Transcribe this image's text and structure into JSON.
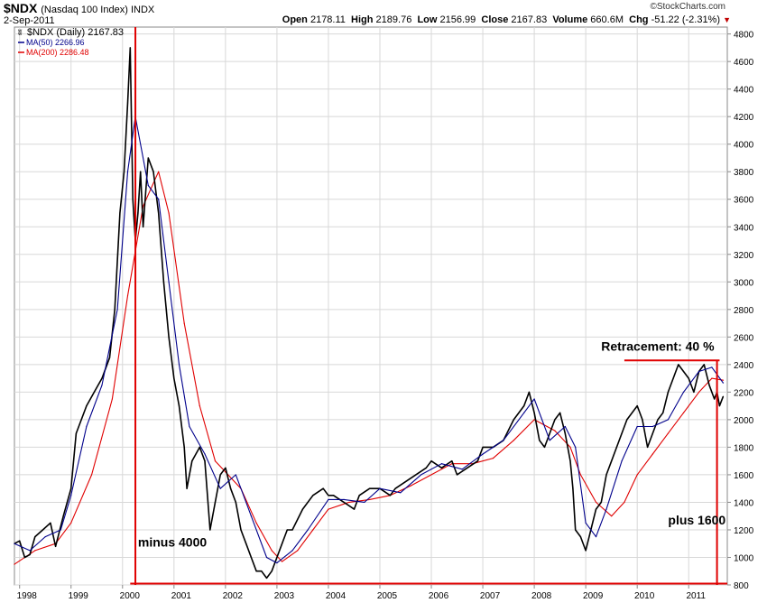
{
  "header": {
    "symbol": "$NDX",
    "symbol_name": "(Nasdaq 100 Index)",
    "exchange": "INDX",
    "date": "2-Sep-2011",
    "brand": "©StockCharts.com",
    "quote": {
      "open_label": "Open",
      "open": "2178.11",
      "high_label": "High",
      "high": "2189.76",
      "low_label": "Low",
      "low": "2156.99",
      "close_label": "Close",
      "close": "2167.83",
      "volume_label": "Volume",
      "volume": "660.6M",
      "chg_label": "Chg",
      "chg": "-51.22 (-2.31%)",
      "chg_arrow": "▼"
    }
  },
  "colors": {
    "price": "#000000",
    "ma50": "#00008b",
    "ma200": "#e00000",
    "annotation": "#e00000",
    "grid": "#d8d8d8",
    "frame": "#888888"
  },
  "chart_data": {
    "type": "line",
    "title": "$NDX (Nasdaq 100 Index) INDX",
    "ylim": [
      800,
      4850
    ],
    "yticks": [
      800,
      1000,
      1200,
      1400,
      1600,
      1800,
      2000,
      2200,
      2400,
      2600,
      2800,
      3000,
      3200,
      3400,
      3600,
      3800,
      4000,
      4200,
      4400,
      4600,
      4800
    ],
    "xlim": [
      1997.9,
      2011.75
    ],
    "xticks": [
      {
        "x": 1998,
        "label": "1998"
      },
      {
        "x": 1999,
        "label": "1999"
      },
      {
        "x": 2000,
        "label": "2000"
      },
      {
        "x": 2001,
        "label": "2001"
      },
      {
        "x": 2002,
        "label": "2002"
      },
      {
        "x": 2003,
        "label": "2003"
      },
      {
        "x": 2004,
        "label": "2004"
      },
      {
        "x": 2005,
        "label": "2005"
      },
      {
        "x": 2006,
        "label": "2006"
      },
      {
        "x": 2007,
        "label": "2007"
      },
      {
        "x": 2008,
        "label": "2008"
      },
      {
        "x": 2009,
        "label": "2009"
      },
      {
        "x": 2010,
        "label": "2010"
      },
      {
        "x": 2011,
        "label": "2011"
      }
    ],
    "legend": {
      "position": "top-left",
      "items": [
        {
          "name": "$NDX (Daily) 2167.83",
          "color": "#000000"
        },
        {
          "name": "MA(50) 2266.96",
          "color": "#00008b"
        },
        {
          "name": "MA(200) 2286.48",
          "color": "#e00000"
        }
      ]
    },
    "series": [
      {
        "name": "$NDX (Daily)",
        "x": [
          1997.9,
          1998.0,
          1998.1,
          1998.2,
          1998.3,
          1998.45,
          1998.6,
          1998.7,
          1998.85,
          1999.0,
          1999.1,
          1999.3,
          1999.45,
          1999.6,
          1999.75,
          1999.85,
          1999.95,
          2000.03,
          2000.1,
          2000.15,
          2000.2,
          2000.25,
          2000.3,
          2000.35,
          2000.4,
          2000.5,
          2000.6,
          2000.7,
          2000.8,
          2000.9,
          2001.0,
          2001.1,
          2001.2,
          2001.25,
          2001.35,
          2001.5,
          2001.6,
          2001.7,
          2001.8,
          2001.9,
          2002.0,
          2002.1,
          2002.2,
          2002.3,
          2002.4,
          2002.5,
          2002.6,
          2002.7,
          2002.8,
          2002.9,
          2003.0,
          2003.1,
          2003.2,
          2003.3,
          2003.5,
          2003.7,
          2003.9,
          2004.0,
          2004.1,
          2004.3,
          2004.5,
          2004.6,
          2004.8,
          2005.0,
          2005.2,
          2005.3,
          2005.5,
          2005.7,
          2005.9,
          2006.0,
          2006.2,
          2006.4,
          2006.5,
          2006.7,
          2006.9,
          2007.0,
          2007.2,
          2007.4,
          2007.6,
          2007.8,
          2007.9,
          2008.0,
          2008.1,
          2008.2,
          2008.3,
          2008.4,
          2008.5,
          2008.6,
          2008.7,
          2008.75,
          2008.8,
          2008.9,
          2009.0,
          2009.1,
          2009.2,
          2009.3,
          2009.4,
          2009.5,
          2009.6,
          2009.7,
          2009.8,
          2010.0,
          2010.1,
          2010.2,
          2010.3,
          2010.4,
          2010.5,
          2010.6,
          2010.7,
          2010.8,
          2011.0,
          2011.1,
          2011.2,
          2011.3,
          2011.4,
          2011.5,
          2011.55,
          2011.6,
          2011.67
        ],
        "values": [
          1100,
          1120,
          1000,
          1020,
          1150,
          1200,
          1250,
          1080,
          1300,
          1500,
          1900,
          2100,
          2200,
          2300,
          2450,
          2800,
          3500,
          3800,
          4300,
          4700,
          3600,
          3300,
          3500,
          3800,
          3400,
          3900,
          3800,
          3500,
          3000,
          2600,
          2300,
          2100,
          1800,
          1500,
          1700,
          1800,
          1700,
          1200,
          1400,
          1600,
          1650,
          1500,
          1400,
          1200,
          1100,
          1000,
          900,
          900,
          850,
          900,
          1000,
          1100,
          1200,
          1200,
          1350,
          1450,
          1500,
          1450,
          1450,
          1400,
          1350,
          1450,
          1500,
          1500,
          1450,
          1500,
          1550,
          1600,
          1650,
          1700,
          1650,
          1700,
          1600,
          1650,
          1700,
          1800,
          1800,
          1850,
          2000,
          2100,
          2200,
          2050,
          1850,
          1800,
          1900,
          2000,
          2050,
          1900,
          1700,
          1500,
          1200,
          1150,
          1050,
          1200,
          1350,
          1400,
          1600,
          1700,
          1800,
          1900,
          2000,
          2100,
          2000,
          1800,
          1900,
          2000,
          2050,
          2200,
          2300,
          2400,
          2300,
          2200,
          2350,
          2400,
          2250,
          2150,
          2200,
          2100,
          2167.83
        ]
      },
      {
        "name": "MA(50)",
        "x": [
          1997.9,
          1998.2,
          1998.5,
          1998.8,
          1999.0,
          1999.3,
          1999.6,
          1999.9,
          2000.1,
          2000.25,
          2000.5,
          2000.7,
          2000.9,
          2001.1,
          2001.3,
          2001.6,
          2001.9,
          2002.2,
          2002.5,
          2002.8,
          2003.0,
          2003.3,
          2003.6,
          2004.0,
          2004.3,
          2004.7,
          2005.0,
          2005.4,
          2005.8,
          2006.2,
          2006.6,
          2007.0,
          2007.4,
          2007.8,
          2008.0,
          2008.3,
          2008.6,
          2008.8,
          2009.0,
          2009.2,
          2009.4,
          2009.7,
          2010.0,
          2010.3,
          2010.6,
          2010.9,
          2011.2,
          2011.45,
          2011.67
        ],
        "values": [
          1100,
          1050,
          1150,
          1200,
          1450,
          1950,
          2250,
          2800,
          3800,
          4200,
          3700,
          3600,
          3000,
          2400,
          1950,
          1750,
          1500,
          1600,
          1300,
          1000,
          960,
          1050,
          1200,
          1420,
          1420,
          1400,
          1500,
          1470,
          1600,
          1680,
          1640,
          1750,
          1850,
          2050,
          2150,
          1850,
          1950,
          1800,
          1250,
          1150,
          1350,
          1700,
          1950,
          1950,
          2000,
          2200,
          2350,
          2380,
          2266.96
        ]
      },
      {
        "name": "MA(200)",
        "x": [
          1997.9,
          1998.3,
          1998.7,
          1999.0,
          1999.4,
          1999.8,
          2000.1,
          2000.4,
          2000.7,
          2000.9,
          2001.2,
          2001.5,
          2001.8,
          2002.0,
          2002.3,
          2002.6,
          2002.9,
          2003.1,
          2003.4,
          2003.7,
          2004.0,
          2004.4,
          2004.8,
          2005.2,
          2005.6,
          2006.0,
          2006.4,
          2006.8,
          2007.2,
          2007.6,
          2008.0,
          2008.4,
          2008.7,
          2008.9,
          2009.2,
          2009.5,
          2009.75,
          2010.0,
          2010.3,
          2010.6,
          2010.9,
          2011.2,
          2011.45,
          2011.67
        ],
        "values": [
          950,
          1050,
          1100,
          1250,
          1600,
          2150,
          2900,
          3550,
          3800,
          3500,
          2700,
          2100,
          1700,
          1620,
          1500,
          1250,
          1050,
          970,
          1050,
          1200,
          1350,
          1400,
          1420,
          1450,
          1520,
          1600,
          1680,
          1680,
          1720,
          1850,
          2000,
          1920,
          1800,
          1600,
          1400,
          1300,
          1400,
          1600,
          1750,
          1900,
          2050,
          2200,
          2300,
          2286.48
        ]
      }
    ],
    "annotations": [
      {
        "text": "minus 4000",
        "x": 2000.3,
        "y": 1080
      },
      {
        "text": "plus 1600",
        "x": 2010.6,
        "y": 1240
      },
      {
        "text": "Retracement: 40 %",
        "x": 2009.3,
        "y": 2500
      }
    ],
    "reference_lines": [
      {
        "type": "vertical",
        "x": 2000.25,
        "y0": 800,
        "y1": 4850
      },
      {
        "type": "horizontal",
        "y": 810,
        "x0": 2000.15,
        "x1": 2011.75
      },
      {
        "type": "horizontal",
        "y": 2430,
        "x0": 2009.75,
        "x1": 2011.6
      },
      {
        "type": "vertical",
        "x": 2011.55,
        "y0": 800,
        "y1": 2430
      }
    ]
  }
}
